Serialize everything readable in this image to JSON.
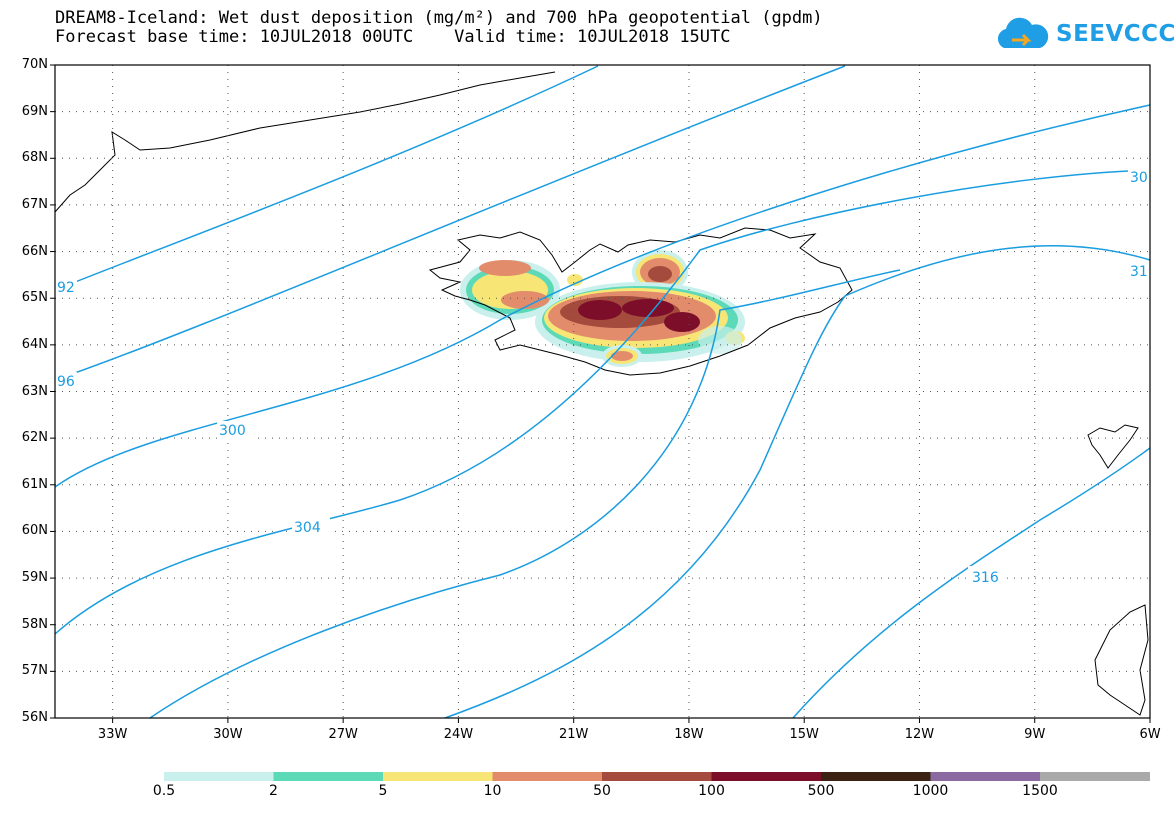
{
  "title": {
    "line1": "DREAM8-Iceland: Wet dust deposition (mg/m²) and 700 hPa geopotential (gpdm)",
    "line2": "Forecast base time: 10JUL2018 00UTC    Valid time: 10JUL2018 15UTC"
  },
  "logo": {
    "text": "SEEVCCC",
    "icon": "cloud-icon",
    "color": "#1f9ee6"
  },
  "map": {
    "lat_labels": [
      "70N",
      "69N",
      "68N",
      "67N",
      "66N",
      "65N",
      "64N",
      "63N",
      "62N",
      "61N",
      "60N",
      "59N",
      "58N",
      "57N",
      "56N"
    ],
    "lon_labels": [
      "33W",
      "30W",
      "27W",
      "24W",
      "21W",
      "18W",
      "15W",
      "12W",
      "9W",
      "6W"
    ],
    "lat_range": [
      56,
      70
    ],
    "lon_range": [
      -34.5,
      -6
    ],
    "grid": "dotted",
    "contour_color": "#1a9de0",
    "contour_labels": [
      "92",
      "96",
      "300",
      "304",
      "316",
      "30",
      "31"
    ]
  },
  "colorbar": {
    "labels": [
      "0.5",
      "2",
      "5",
      "10",
      "50",
      "100",
      "500",
      "1000",
      "1500"
    ],
    "colors": [
      "#c9f0ec",
      "#5cd9b6",
      "#f7e675",
      "#e38c6c",
      "#a44b3e",
      "#7d0e2a",
      "#3b2212",
      "#8a6aa0",
      "#a9a9a9"
    ]
  }
}
